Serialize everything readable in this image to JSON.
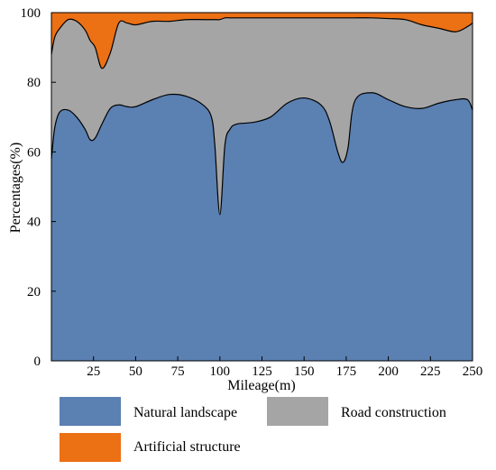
{
  "chart_data": {
    "type": "area",
    "stacked": true,
    "xlabel": "Mileage(m)",
    "ylabel": "Percentages(%)",
    "xlim": [
      0,
      250
    ],
    "ylim": [
      0,
      100
    ],
    "xticks": [
      25,
      50,
      75,
      100,
      125,
      150,
      175,
      200,
      225,
      250
    ],
    "yticks": [
      0,
      20,
      40,
      60,
      80,
      100
    ],
    "grid": false,
    "legend_position": "bottom",
    "x": [
      0,
      2,
      5,
      10,
      15,
      20,
      23,
      26,
      30,
      35,
      40,
      45,
      50,
      60,
      70,
      80,
      90,
      95,
      97,
      100,
      103,
      106,
      110,
      120,
      130,
      140,
      150,
      160,
      165,
      170,
      173,
      176,
      180,
      190,
      200,
      210,
      220,
      230,
      240,
      247,
      250
    ],
    "series": [
      {
        "name": "Natural landscape",
        "color": "#5b80b2",
        "values": [
          58,
          67,
          71.5,
          72,
          70,
          66.5,
          63.5,
          64,
          68,
          72.5,
          73.5,
          73,
          73,
          75,
          76.5,
          76,
          73.5,
          70,
          62,
          42,
          62,
          66.5,
          68,
          68.5,
          70,
          74,
          75.5,
          73.5,
          69,
          60,
          57,
          61,
          74.5,
          77,
          75,
          73,
          72.5,
          74,
          75,
          75,
          72
        ]
      },
      {
        "name": "Road construction",
        "color": "#a5a5a5",
        "values": [
          30,
          26,
          24,
          26,
          27.5,
          28.5,
          28.5,
          26,
          16,
          16,
          23.5,
          24,
          23.5,
          22.5,
          21,
          22,
          24.5,
          28,
          36,
          56,
          36.5,
          32,
          30.5,
          30,
          28.5,
          24.5,
          23,
          25,
          29.5,
          38.5,
          41.5,
          37.5,
          24,
          21.5,
          23.3,
          25,
          24,
          21.5,
          19.5,
          21,
          25
        ]
      },
      {
        "name": "Artificial structure",
        "color": "#ec7014",
        "values": [
          12,
          7,
          4.5,
          2,
          2.5,
          5,
          8,
          10,
          16,
          11.5,
          3,
          3,
          3.5,
          2.5,
          2.5,
          2,
          2,
          2,
          2,
          2,
          1.5,
          1.5,
          1.5,
          1.5,
          1.5,
          1.5,
          1.5,
          1.5,
          1.5,
          1.5,
          1.5,
          1.5,
          1.5,
          1.5,
          1.7,
          2,
          3.5,
          4.5,
          5.5,
          4,
          3
        ]
      }
    ]
  }
}
